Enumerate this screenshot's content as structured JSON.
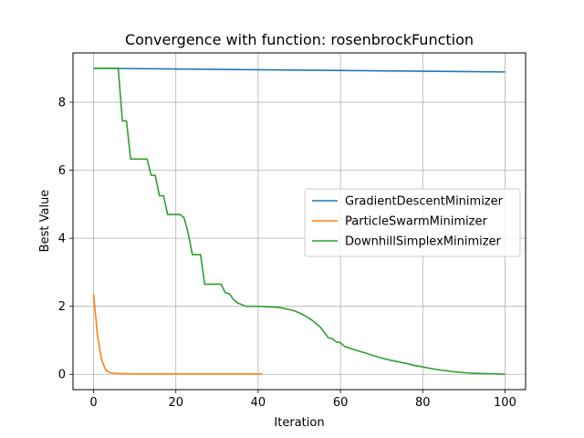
{
  "chart_data": {
    "type": "line",
    "title": "Convergence with function: rosenbrockFunction",
    "xlabel": "Iteration",
    "ylabel": "Best Value",
    "xlim": [
      -5,
      105
    ],
    "ylim": [
      -0.45,
      9.45
    ],
    "xticks": [
      0,
      20,
      40,
      60,
      80,
      100
    ],
    "yticks": [
      0,
      2,
      4,
      6,
      8
    ],
    "grid": true,
    "legend_position": "center-right",
    "series": [
      {
        "name": "GradientDescentMinimizer",
        "color": "#1f77b4",
        "x": [
          0,
          100
        ],
        "y": [
          9.0,
          8.89
        ]
      },
      {
        "name": "ParticleSwarmMinimizer",
        "color": "#ff7f0e",
        "x": [
          0,
          1,
          2,
          3,
          4,
          5,
          6,
          8,
          10,
          15,
          20,
          25,
          30,
          35,
          41
        ],
        "y": [
          2.35,
          1.1,
          0.4,
          0.12,
          0.05,
          0.03,
          0.02,
          0.015,
          0.01,
          0.01,
          0.01,
          0.01,
          0.01,
          0.01,
          0.01
        ]
      },
      {
        "name": "DownhillSimplexMinimizer",
        "color": "#2ca02c",
        "x": [
          0,
          6,
          7,
          8,
          9,
          13,
          14,
          15,
          16,
          17,
          18,
          21,
          22,
          23,
          24,
          26,
          27,
          31,
          32,
          33,
          34,
          35,
          36,
          37,
          40,
          45,
          47,
          49,
          51,
          53,
          55,
          56,
          57,
          58,
          59,
          60,
          61,
          62,
          64,
          66,
          68,
          70,
          72,
          74,
          76,
          78,
          80,
          82,
          84,
          86,
          88,
          90,
          92,
          95,
          98,
          100
        ],
        "y": [
          9.0,
          9.0,
          7.45,
          7.45,
          6.33,
          6.33,
          5.85,
          5.85,
          5.25,
          5.25,
          4.7,
          4.7,
          4.6,
          4.15,
          3.52,
          3.52,
          2.65,
          2.65,
          2.4,
          2.37,
          2.2,
          2.1,
          2.05,
          2.0,
          2.0,
          1.97,
          1.92,
          1.86,
          1.75,
          1.6,
          1.4,
          1.25,
          1.08,
          1.05,
          0.95,
          0.93,
          0.82,
          0.78,
          0.7,
          0.63,
          0.55,
          0.48,
          0.42,
          0.37,
          0.32,
          0.26,
          0.22,
          0.17,
          0.13,
          0.1,
          0.07,
          0.05,
          0.03,
          0.02,
          0.01,
          0.0
        ]
      }
    ]
  }
}
